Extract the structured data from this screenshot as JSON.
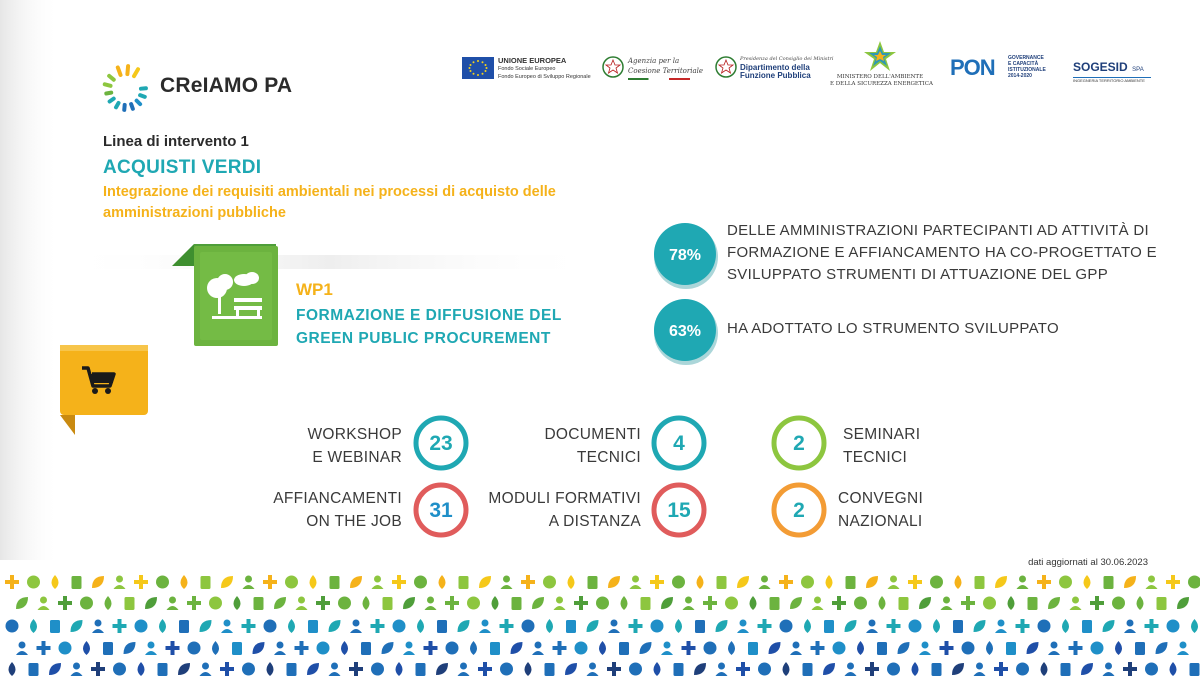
{
  "header": {
    "brand": "CReIAMO PA",
    "partners": {
      "eu_title": "UNIONE EUROPEA",
      "eu_line1": "Fondo Sociale Europeo",
      "eu_line2": "Fondo Europeo di Sviluppo Regionale",
      "agenzia_line1": "Agenzia per la",
      "agenzia_line2": "Coesione Territoriale",
      "funzione_line1": "Presidenza del Consiglio dei Ministri",
      "funzione_line2": "Dipartimento della",
      "funzione_line3": "Funzione Pubblica",
      "ministero_line1": "MINISTERO DELL'AMBIENTE",
      "ministero_line2": "E DELLA SICUREZZA ENERGETICA",
      "pon_word": "PON",
      "pon_line1": "GOVERNANCE",
      "pon_line2": "E CAPACITÀ",
      "pon_line3": "ISTITUZIONALE",
      "pon_line4": "2014-2020",
      "sogesid": "SOGESID",
      "sogesid_spa": "SPA",
      "sogesid_sub": "INGEGNERIA TERRITORIO AMBIENTE"
    }
  },
  "intro": {
    "linea": "Linea di intervento 1",
    "title": "ACQUISTI VERDI",
    "subtitle": "Integrazione dei requisiti ambientali nei processi di acquisto delle amministrazioni pubbliche"
  },
  "wp": {
    "label": "WP1",
    "title": "FORMAZIONE E DIFFUSIONE DEL GREEN PUBLIC PROCUREMENT"
  },
  "stats": [
    {
      "value": "78%",
      "text": "DELLE AMMINISTRAZIONI PARTECIPANTI AD ATTIVITÀ DI FORMAZIONE E AFFIANCAMENTO HA CO-PROGETTATO E SVILUPPATO STRUMENTI DI ATTUAZIONE DEL GPP"
    },
    {
      "value": "63%",
      "text": "HA ADOTTATO LO STRUMENTO SVILUPPATO"
    }
  ],
  "counters": [
    {
      "line1": "WORKSHOP",
      "line2": "E WEBINAR",
      "value": "23",
      "color": "#1fa8b3"
    },
    {
      "line1": "AFFIANCAMENTI",
      "line2": "ON THE JOB",
      "value": "31",
      "color": "#e05c5c"
    },
    {
      "line1": "DOCUMENTI",
      "line2": "TECNICI",
      "value": "4",
      "color": "#1fa8b3"
    },
    {
      "line1": "MODULI FORMATIVI",
      "line2": "A DISTANZA",
      "value": "15",
      "color": "#e05c5c"
    },
    {
      "line1": "SEMINARI",
      "line2": "TECNICI",
      "value": "2",
      "color": "#8dc63f"
    },
    {
      "line1": "CONVEGNI",
      "line2": "NAZIONALI",
      "value": "2",
      "color": "#f39c35"
    }
  ],
  "footer": {
    "updated": "dati aggiornati al 30.06.2023"
  },
  "colors": {
    "teal": "#1fa8b3",
    "yellow": "#f5b21a",
    "green": "#6cb33f",
    "red": "#e05c5c",
    "orange": "#f39c35",
    "blue": "#1f6fb8"
  },
  "icons": [
    "cart-icon",
    "park-icon",
    "burst-logo-icon",
    "eu-flag-icon"
  ]
}
